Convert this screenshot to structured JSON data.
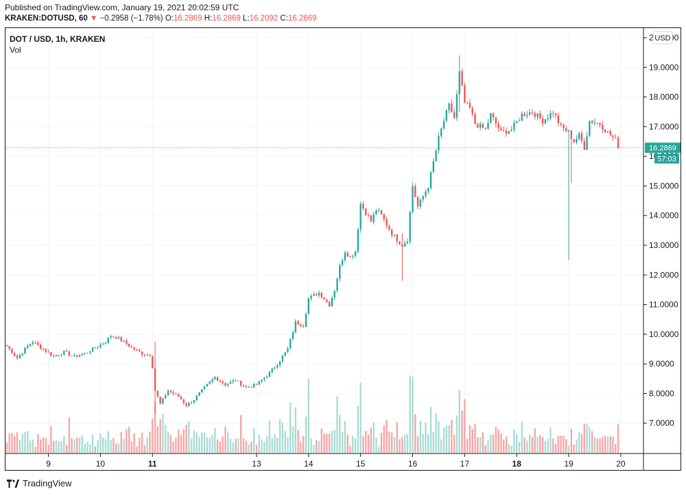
{
  "header": {
    "published": "Published on TradingView.com, January 19, 2021 20:02:59 UTC",
    "symbol": "KRAKEN:DOTUSD, 60",
    "change": "−0.2958 (−1.78%)",
    "o_label": "O:",
    "o_value": "16.2869",
    "h_label": "H:",
    "h_value": "16.2869",
    "l_label": "L:",
    "l_value": "16.2092",
    "c_label": "C:",
    "c_value": "16.2869"
  },
  "legend": {
    "pair": "DOT / USD, 1h, KRAKEN",
    "vol": "Vol"
  },
  "footer": {
    "brand": "TradingView"
  },
  "colors": {
    "up": "#26a69a",
    "down": "#ef5350",
    "vol_up": "#a7dcd4",
    "vol_down": "#f5a5a4",
    "grid": "#f0f3fa",
    "price_line": "#26a69a"
  },
  "chart_data": {
    "type": "candlestick",
    "currency": "USD",
    "y_ticks": [
      "20.0000",
      "19.0000",
      "18.0000",
      "17.0000",
      "16.0000",
      "15.0000",
      "14.0000",
      "13.0000",
      "12.0000",
      "11.0000",
      "10.0000",
      "9.0000",
      "8.0000",
      "7.0000"
    ],
    "ylim": [
      6.0,
      20.3
    ],
    "x_ticks": [
      {
        "label": "9",
        "bold": false
      },
      {
        "label": "10",
        "bold": false
      },
      {
        "label": "11",
        "bold": true
      },
      {
        "label": "13",
        "bold": false
      },
      {
        "label": "14",
        "bold": false
      },
      {
        "label": "15",
        "bold": false
      },
      {
        "label": "16",
        "bold": false
      },
      {
        "label": "17",
        "bold": false
      },
      {
        "label": "18",
        "bold": true
      },
      {
        "label": "19",
        "bold": false
      },
      {
        "label": "20",
        "bold": false
      }
    ],
    "x_tick_index": [
      16,
      36,
      56,
      96,
      116,
      136,
      156,
      176,
      196,
      216,
      236
    ],
    "last_price": "16.2869",
    "countdown": "57:03",
    "key_prices": [
      [
        0,
        9.6
      ],
      [
        4,
        9.2
      ],
      [
        8,
        9.6
      ],
      [
        10,
        9.75
      ],
      [
        14,
        9.5
      ],
      [
        18,
        9.25
      ],
      [
        22,
        9.4
      ],
      [
        26,
        9.25
      ],
      [
        30,
        9.35
      ],
      [
        34,
        9.55
      ],
      [
        38,
        9.75
      ],
      [
        40,
        9.95
      ],
      [
        42,
        9.9
      ],
      [
        44,
        9.8
      ],
      [
        48,
        9.55
      ],
      [
        52,
        9.35
      ],
      [
        55,
        9.3
      ],
      [
        56,
        8.9
      ],
      [
        57,
        8.1
      ],
      [
        59,
        7.65
      ],
      [
        62,
        8.1
      ],
      [
        66,
        7.9
      ],
      [
        69,
        7.6
      ],
      [
        72,
        7.8
      ],
      [
        76,
        8.2
      ],
      [
        80,
        8.55
      ],
      [
        84,
        8.3
      ],
      [
        88,
        8.45
      ],
      [
        92,
        8.2
      ],
      [
        96,
        8.3
      ],
      [
        100,
        8.6
      ],
      [
        104,
        9.0
      ],
      [
        108,
        9.5
      ],
      [
        111,
        10.4
      ],
      [
        114,
        10.3
      ],
      [
        116,
        11.2
      ],
      [
        120,
        11.4
      ],
      [
        124,
        11.0
      ],
      [
        126,
        11.5
      ],
      [
        128,
        12.3
      ],
      [
        130,
        12.8
      ],
      [
        132,
        12.6
      ],
      [
        134,
        12.8
      ],
      [
        136,
        14.4
      ],
      [
        140,
        13.8
      ],
      [
        142,
        14.2
      ],
      [
        144,
        14.0
      ],
      [
        148,
        13.4
      ],
      [
        152,
        13.0
      ],
      [
        154,
        13.2
      ],
      [
        156,
        15.0
      ],
      [
        158,
        14.3
      ],
      [
        162,
        15.0
      ],
      [
        164,
        15.8
      ],
      [
        166,
        16.6
      ],
      [
        168,
        17.2
      ],
      [
        170,
        17.7
      ],
      [
        172,
        17.3
      ],
      [
        174,
        18.8
      ],
      [
        176,
        17.8
      ],
      [
        178,
        17.6
      ],
      [
        180,
        17.1
      ],
      [
        184,
        16.9
      ],
      [
        186,
        17.4
      ],
      [
        190,
        16.8
      ],
      [
        194,
        16.9
      ],
      [
        198,
        17.4
      ],
      [
        202,
        17.5
      ],
      [
        206,
        17.2
      ],
      [
        210,
        17.5
      ],
      [
        213,
        17.0
      ],
      [
        216,
        16.8
      ],
      [
        218,
        16.5
      ],
      [
        220,
        16.7
      ],
      [
        222,
        16.3
      ],
      [
        224,
        17.2
      ],
      [
        228,
        17.1
      ],
      [
        231,
        16.8
      ],
      [
        234,
        16.55
      ],
      [
        235,
        16.29
      ]
    ],
    "notable_wicks": [
      {
        "i": 57,
        "high": 9.75,
        "low": 7.3
      },
      {
        "i": 152,
        "high": 13.4,
        "low": 11.8
      },
      {
        "i": 174,
        "high": 19.4,
        "low": 17.5
      },
      {
        "i": 216,
        "high": 16.8,
        "low": 12.5
      },
      {
        "i": 217,
        "high": 16.4,
        "low": 15.1
      }
    ],
    "volume_ratio": 0.16
  }
}
